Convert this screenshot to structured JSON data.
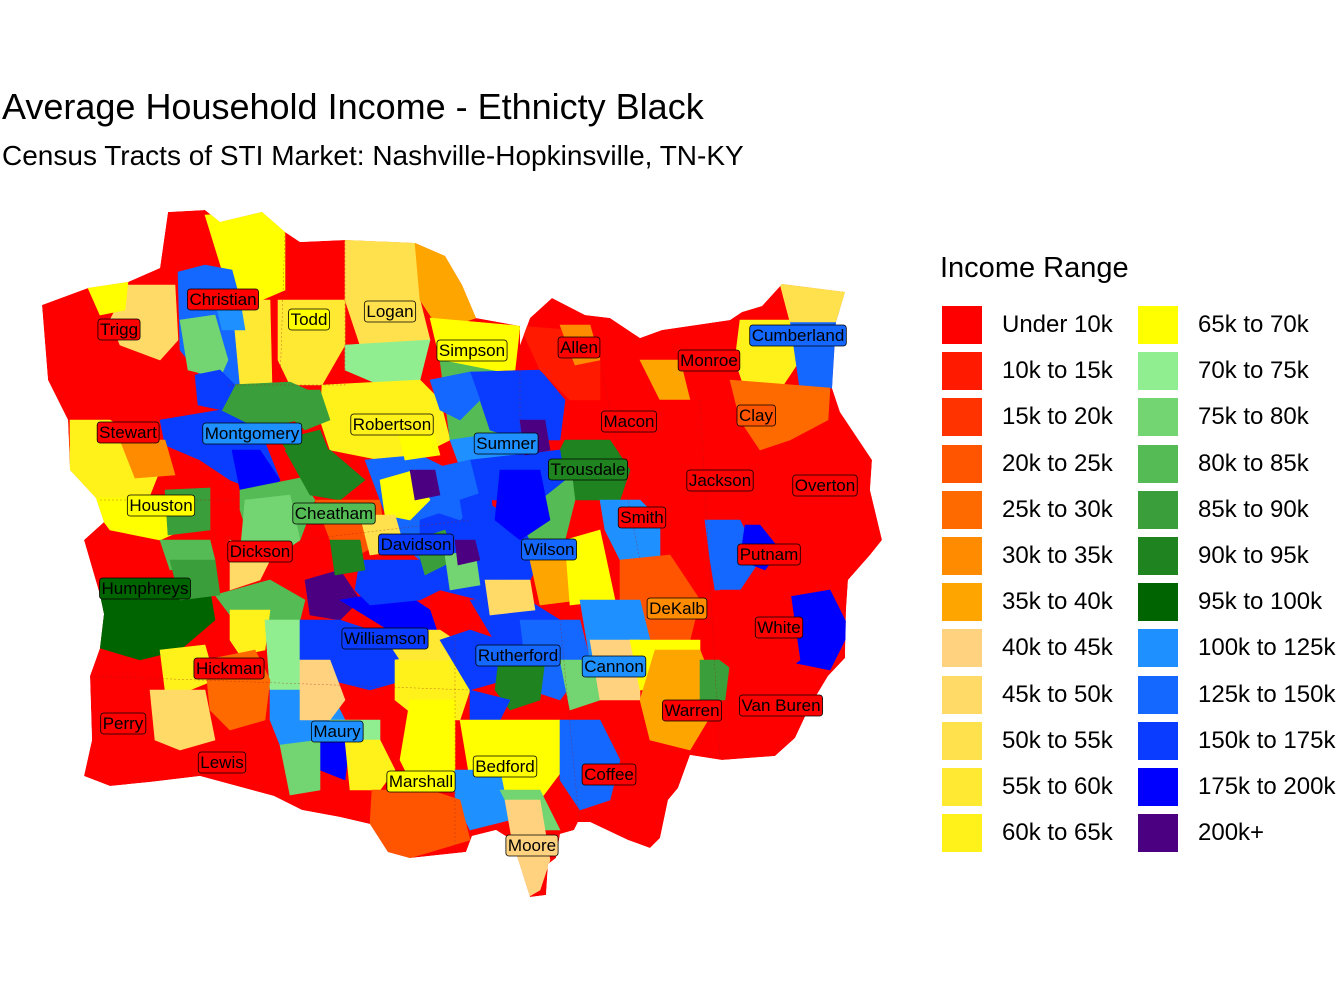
{
  "title": "Average Household Income - Ethnicty Black",
  "subtitle": "Census Tracts of STI Market: Nashville-Hopkinsville, TN-KY",
  "legend": {
    "title": "Income Range",
    "items": [
      {
        "label": "Under 10k",
        "color": "#FF0000"
      },
      {
        "label": "10k to 15k",
        "color": "#FF1A00"
      },
      {
        "label": "15k to 20k",
        "color": "#FF3300"
      },
      {
        "label": "20k to 25k",
        "color": "#FF5500"
      },
      {
        "label": "25k to 30k",
        "color": "#FF6A00"
      },
      {
        "label": "30k to 35k",
        "color": "#FF8C00"
      },
      {
        "label": "35k to 40k",
        "color": "#FFA500"
      },
      {
        "label": "40k to 45k",
        "color": "#FFD27F"
      },
      {
        "label": "45k to 50k",
        "color": "#FFDA66"
      },
      {
        "label": "50k to 55k",
        "color": "#FFE14D"
      },
      {
        "label": "55k to 60k",
        "color": "#FFE933"
      },
      {
        "label": "60k to 65k",
        "color": "#FFF21A"
      },
      {
        "label": "65k to 70k",
        "color": "#FFFF00"
      },
      {
        "label": "70k to 75k",
        "color": "#90EE90"
      },
      {
        "label": "75k to 80k",
        "color": "#72D572"
      },
      {
        "label": "80k to 85k",
        "color": "#55BB55"
      },
      {
        "label": "85k to 90k",
        "color": "#3A9F3A"
      },
      {
        "label": "90k to 95k",
        "color": "#1F831F"
      },
      {
        "label": "95k to 100k",
        "color": "#006400"
      },
      {
        "label": "100k to 125k",
        "color": "#1E90FF"
      },
      {
        "label": "125k to 150k",
        "color": "#1467FF"
      },
      {
        "label": "150k to 175k",
        "color": "#0A3CFF"
      },
      {
        "label": "175k to 200k",
        "color": "#0000FF"
      },
      {
        "label": "200k+",
        "color": "#4B0082"
      }
    ]
  },
  "counties": [
    {
      "name": "Christian",
      "class": 0
    },
    {
      "name": "Trigg",
      "class": 0
    },
    {
      "name": "Todd",
      "class": 12
    },
    {
      "name": "Logan",
      "class": 9
    },
    {
      "name": "Simpson",
      "class": 12
    },
    {
      "name": "Allen",
      "class": 0
    },
    {
      "name": "Monroe",
      "class": 0
    },
    {
      "name": "Cumberland",
      "class": 20
    },
    {
      "name": "Stewart",
      "class": 0
    },
    {
      "name": "Montgomery",
      "class": 19
    },
    {
      "name": "Robertson",
      "class": 11
    },
    {
      "name": "Sumner",
      "class": 19
    },
    {
      "name": "Macon",
      "class": 0
    },
    {
      "name": "Clay",
      "class": 3
    },
    {
      "name": "Trousdale",
      "class": 17
    },
    {
      "name": "Jackson",
      "class": 0
    },
    {
      "name": "Overton",
      "class": 0
    },
    {
      "name": "Houston",
      "class": 12
    },
    {
      "name": "Cheatham",
      "class": 15
    },
    {
      "name": "Smith",
      "class": 0
    },
    {
      "name": "Dickson",
      "class": 0
    },
    {
      "name": "Davidson",
      "class": 21
    },
    {
      "name": "Wilson",
      "class": 20
    },
    {
      "name": "Putnam",
      "class": 0
    },
    {
      "name": "Humphreys",
      "class": 18
    },
    {
      "name": "DeKalb",
      "class": 5
    },
    {
      "name": "White",
      "class": 0
    },
    {
      "name": "Williamson",
      "class": 21
    },
    {
      "name": "Rutherford",
      "class": 20
    },
    {
      "name": "Cannon",
      "class": 19
    },
    {
      "name": "Hickman",
      "class": 0
    },
    {
      "name": "Warren",
      "class": 0
    },
    {
      "name": "Van Buren",
      "class": 0
    },
    {
      "name": "Perry",
      "class": 0
    },
    {
      "name": "Maury",
      "class": 19
    },
    {
      "name": "Lewis",
      "class": 0
    },
    {
      "name": "Marshall",
      "class": 12
    },
    {
      "name": "Bedford",
      "class": 12
    },
    {
      "name": "Coffee",
      "class": 0
    },
    {
      "name": "Moore",
      "class": 7
    }
  ]
}
